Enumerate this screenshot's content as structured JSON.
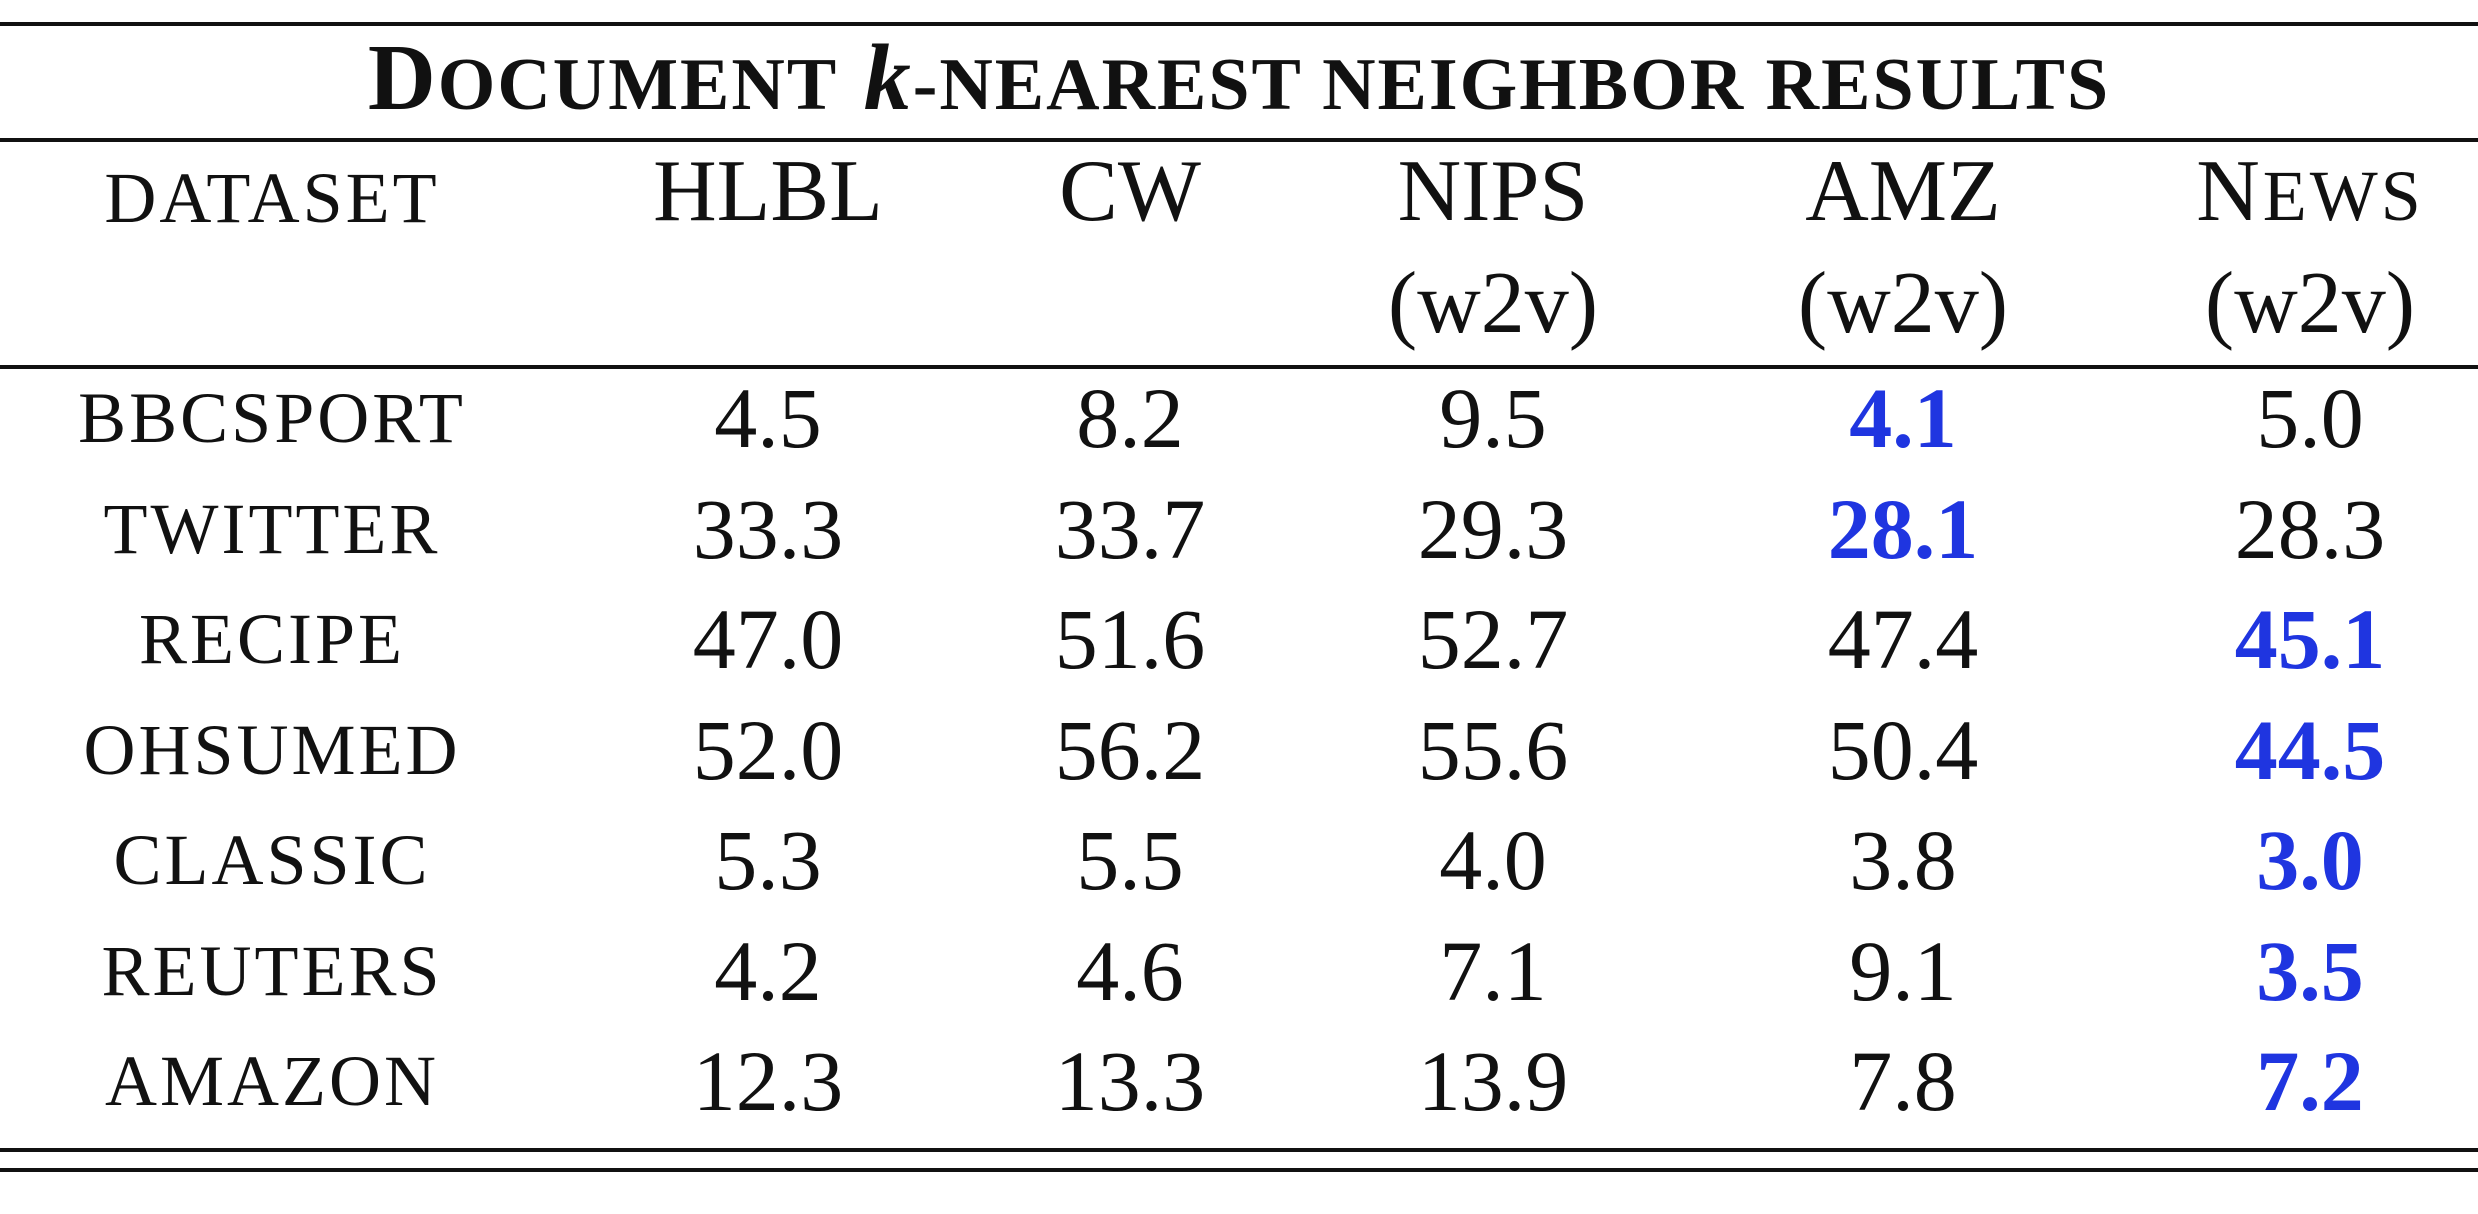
{
  "table": {
    "title": {
      "first_cap": "D",
      "first_rest": "OCUMENT",
      "k": "k",
      "rest": "-NEAREST NEIGHBOR RESULTS"
    },
    "header": {
      "dataset": "DATASET",
      "columns": [
        {
          "line1": "HLBL",
          "line2": ""
        },
        {
          "line1": "CW",
          "line2": ""
        },
        {
          "line1": "NIPS",
          "line2": "(w2v)"
        },
        {
          "line1": "AMZ",
          "line2": "(w2v)"
        },
        {
          "line1_cap": "N",
          "line1_rest": "EWS",
          "line2": "(w2v)"
        }
      ]
    },
    "rows": [
      {
        "name": "BBCSPORT",
        "values": [
          "4.5",
          "8.2",
          "9.5",
          "4.1",
          "5.0"
        ],
        "best_index": 3
      },
      {
        "name": "TWITTER",
        "values": [
          "33.3",
          "33.7",
          "29.3",
          "28.1",
          "28.3"
        ],
        "best_index": 3
      },
      {
        "name": "RECIPE",
        "values": [
          "47.0",
          "51.6",
          "52.7",
          "47.4",
          "45.1"
        ],
        "best_index": 4
      },
      {
        "name": "OHSUMED",
        "values": [
          "52.0",
          "56.2",
          "55.6",
          "50.4",
          "44.5"
        ],
        "best_index": 4
      },
      {
        "name": "CLASSIC",
        "values": [
          "5.3",
          "5.5",
          "4.0",
          "3.8",
          "3.0"
        ],
        "best_index": 4
      },
      {
        "name": "REUTERS",
        "values": [
          "4.2",
          "4.6",
          "7.1",
          "9.1",
          "3.5"
        ],
        "best_index": 4
      },
      {
        "name": "AMAZON",
        "values": [
          "12.3",
          "13.3",
          "13.9",
          "7.8",
          "7.2"
        ],
        "best_index": 4
      }
    ],
    "colors": {
      "best": "#1f35e0",
      "text": "#111111"
    }
  }
}
